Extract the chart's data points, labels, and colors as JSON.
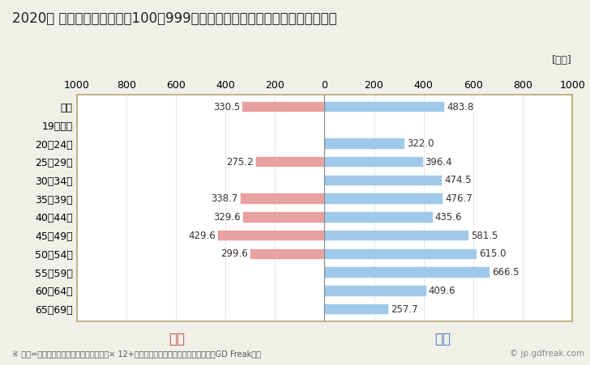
{
  "title": "2020年 民間企業（従業者数100〜999人）フルタイム労働者の男女別平均年収",
  "ylabel_unit": "[万円]",
  "footnote": "※ 年収=「きまって支給する現金給与額」× 12+「年間賞与その他特別給与額」としてGD Freak推計",
  "watermark": "© jp.gdfreak.com",
  "categories": [
    "全体",
    "19歳以下",
    "20〜24歳",
    "25〜29歳",
    "30〜34歳",
    "35〜39歳",
    "40〜44歳",
    "45〜49歳",
    "50〜54歳",
    "55〜59歳",
    "60〜64歳",
    "65〜69歳"
  ],
  "female_values": [
    330.5,
    0,
    0,
    275.2,
    0,
    338.7,
    329.6,
    429.6,
    299.6,
    0,
    0,
    0
  ],
  "male_values": [
    483.8,
    0,
    322.0,
    396.4,
    474.5,
    476.7,
    435.6,
    581.5,
    615.0,
    666.5,
    409.6,
    257.7
  ],
  "female_color": "#e8a0a0",
  "male_color": "#a0c8e8",
  "female_label": "女性",
  "male_label": "男性",
  "female_label_color": "#c0504d",
  "male_label_color": "#4472c4",
  "xlim": [
    -1000,
    1000
  ],
  "xticks": [
    -1000,
    -800,
    -600,
    -400,
    -200,
    0,
    200,
    400,
    600,
    800,
    1000
  ],
  "xticklabels": [
    "1000",
    "800",
    "600",
    "400",
    "200",
    "0",
    "200",
    "400",
    "600",
    "800",
    "1000"
  ],
  "background_color": "#f0efe8",
  "plot_bg_color": "#ffffff",
  "border_color": "#b8a878",
  "title_fontsize": 12,
  "tick_fontsize": 9,
  "bar_height": 0.55,
  "value_fontsize": 8.5
}
